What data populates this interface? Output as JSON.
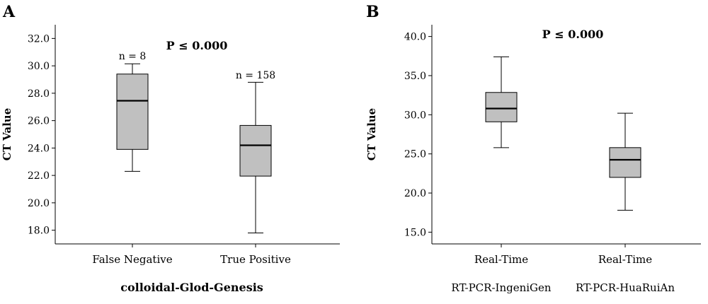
{
  "chart_data": [
    {
      "type": "box",
      "panel_label": "A",
      "ylabel": "CT Value",
      "xlabel": "colloidal-Glod-Genesis",
      "ylim": [
        17.0,
        33.0
      ],
      "yticks": [
        "18.0",
        "20.0",
        "22.0",
        "24.0",
        "26.0",
        "28.0",
        "30.0",
        "32.0"
      ],
      "annotation": "P ≤ 0.000",
      "categories": [
        "False Negative",
        "True Positive"
      ],
      "boxes": [
        {
          "category": "False Negative",
          "n_label": "n = 8",
          "min": 22.3,
          "q1": 23.9,
          "median": 27.45,
          "q3": 29.4,
          "max": 30.15
        },
        {
          "category": "True Positive",
          "n_label": "n = 158",
          "min": 17.8,
          "q1": 21.95,
          "median": 24.2,
          "q3": 25.65,
          "max": 28.8
        }
      ]
    },
    {
      "type": "box",
      "panel_label": "B",
      "ylabel": "CT Value",
      "xlabel": "",
      "ylim": [
        13.5,
        41.5
      ],
      "yticks": [
        "15.0",
        "20.0",
        "25.0",
        "30.0",
        "35.0",
        "40.0"
      ],
      "annotation": "P ≤ 0.000",
      "categories": [
        "Real-Time",
        "Real-Time"
      ],
      "sublabels": [
        "RT-PCR-IngeniGen",
        "RT-PCR-HuaRuiAn"
      ],
      "boxes": [
        {
          "category": "Real-Time",
          "n_label": "",
          "min": 25.8,
          "q1": 29.1,
          "median": 30.8,
          "q3": 32.85,
          "max": 37.4
        },
        {
          "category": "Real-Time",
          "n_label": "",
          "min": 17.8,
          "q1": 22.0,
          "median": 24.25,
          "q3": 25.8,
          "max": 30.2
        }
      ]
    }
  ]
}
